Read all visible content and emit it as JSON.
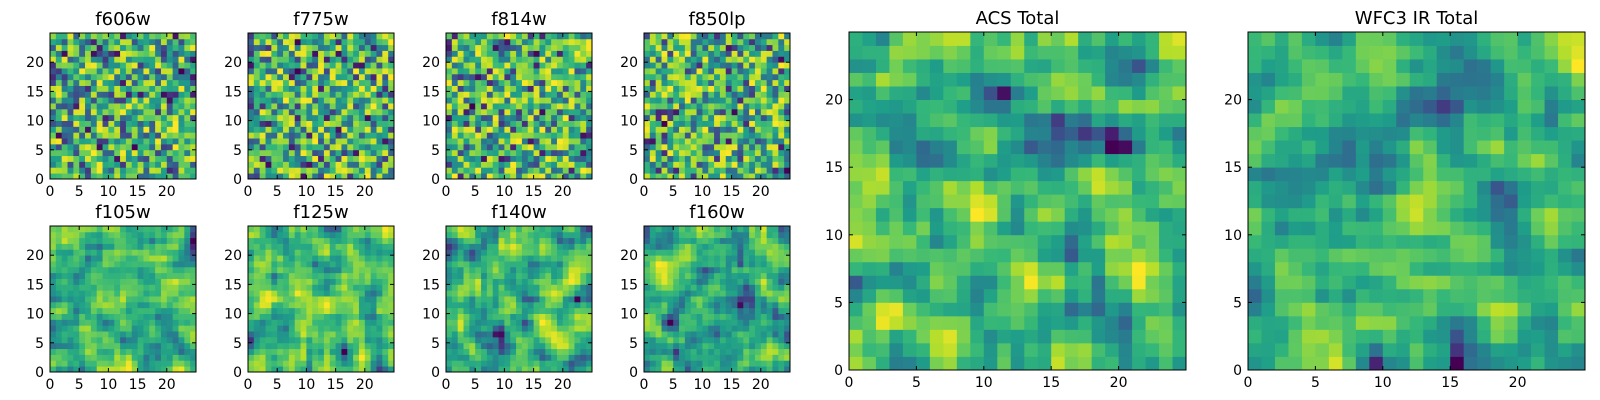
{
  "chart_data": [
    {
      "type": "heatmap",
      "title": "f606w",
      "grid": [
        25,
        25
      ],
      "xlim": [
        0,
        25
      ],
      "ylim": [
        0,
        25
      ],
      "xticks": [
        0,
        5,
        10,
        15,
        20
      ],
      "yticks": [
        0,
        5,
        10,
        15,
        20
      ],
      "colormap": "viridis",
      "seed": 11
    },
    {
      "type": "heatmap",
      "title": "f775w",
      "grid": [
        25,
        25
      ],
      "xlim": [
        0,
        25
      ],
      "ylim": [
        0,
        25
      ],
      "xticks": [
        0,
        5,
        10,
        15,
        20
      ],
      "yticks": [
        0,
        5,
        10,
        15,
        20
      ],
      "colormap": "viridis",
      "seed": 23
    },
    {
      "type": "heatmap",
      "title": "f814w",
      "grid": [
        25,
        25
      ],
      "xlim": [
        0,
        25
      ],
      "ylim": [
        0,
        25
      ],
      "xticks": [
        0,
        5,
        10,
        15,
        20
      ],
      "yticks": [
        0,
        5,
        10,
        15,
        20
      ],
      "colormap": "viridis",
      "seed": 37
    },
    {
      "type": "heatmap",
      "title": "f850lp",
      "grid": [
        25,
        25
      ],
      "xlim": [
        0,
        25
      ],
      "ylim": [
        0,
        25
      ],
      "xticks": [
        0,
        5,
        10,
        15,
        20
      ],
      "yticks": [
        0,
        5,
        10,
        15,
        20
      ],
      "colormap": "viridis",
      "seed": 41
    },
    {
      "type": "heatmap",
      "title": "f105w",
      "grid": [
        25,
        25
      ],
      "xlim": [
        0,
        25
      ],
      "ylim": [
        0,
        25
      ],
      "xticks": [
        0,
        5,
        10,
        15,
        20
      ],
      "yticks": [
        0,
        5,
        10,
        15,
        20
      ],
      "colormap": "viridis",
      "seed": 53
    },
    {
      "type": "heatmap",
      "title": "f125w",
      "grid": [
        25,
        25
      ],
      "xlim": [
        0,
        25
      ],
      "ylim": [
        0,
        25
      ],
      "xticks": [
        0,
        5,
        10,
        15,
        20
      ],
      "yticks": [
        0,
        5,
        10,
        15,
        20
      ],
      "colormap": "viridis",
      "seed": 67
    },
    {
      "type": "heatmap",
      "title": "f140w",
      "grid": [
        25,
        25
      ],
      "xlim": [
        0,
        25
      ],
      "ylim": [
        0,
        25
      ],
      "xticks": [
        0,
        5,
        10,
        15,
        20
      ],
      "yticks": [
        0,
        5,
        10,
        15,
        20
      ],
      "colormap": "viridis",
      "seed": 79
    },
    {
      "type": "heatmap",
      "title": "f160w",
      "grid": [
        25,
        25
      ],
      "xlim": [
        0,
        25
      ],
      "ylim": [
        0,
        25
      ],
      "xticks": [
        0,
        5,
        10,
        15,
        20
      ],
      "yticks": [
        0,
        5,
        10,
        15,
        20
      ],
      "colormap": "viridis",
      "seed": 83
    },
    {
      "type": "heatmap",
      "title": "ACS Total",
      "grid": [
        25,
        25
      ],
      "xlim": [
        0,
        25
      ],
      "ylim": [
        0,
        25
      ],
      "xticks": [
        0,
        5,
        10,
        15,
        20
      ],
      "yticks": [
        0,
        5,
        10,
        15,
        20
      ],
      "colormap": "viridis",
      "seed": 97
    },
    {
      "type": "heatmap",
      "title": "WFC3 IR Total",
      "grid": [
        25,
        25
      ],
      "xlim": [
        0,
        25
      ],
      "ylim": [
        0,
        25
      ],
      "xticks": [
        0,
        5,
        10,
        15,
        20
      ],
      "yticks": [
        0,
        5,
        10,
        15,
        20
      ],
      "colormap": "viridis",
      "seed": 101
    }
  ]
}
